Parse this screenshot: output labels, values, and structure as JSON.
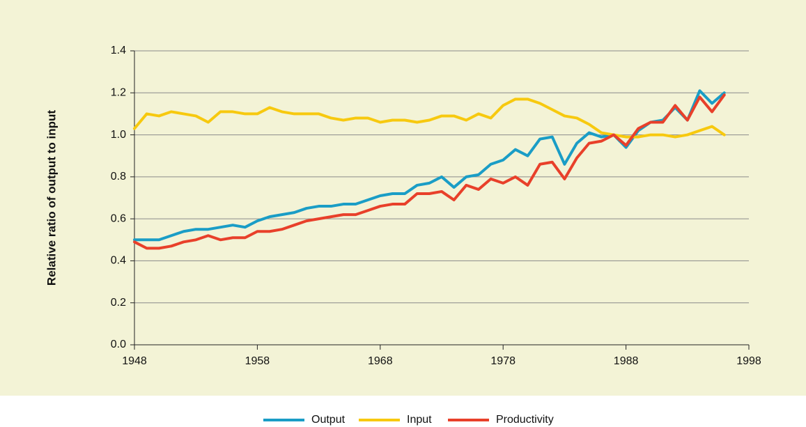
{
  "chart_data": {
    "type": "line",
    "y_label": "Relative ratio of output to input",
    "x": [
      1948,
      1949,
      1950,
      1951,
      1952,
      1953,
      1954,
      1955,
      1956,
      1957,
      1958,
      1959,
      1960,
      1961,
      1962,
      1963,
      1964,
      1965,
      1966,
      1967,
      1968,
      1969,
      1970,
      1971,
      1972,
      1973,
      1974,
      1975,
      1976,
      1977,
      1978,
      1979,
      1980,
      1981,
      1982,
      1983,
      1984,
      1985,
      1986,
      1987,
      1988,
      1989,
      1990,
      1991,
      1992,
      1993,
      1994,
      1995,
      1996
    ],
    "series": [
      {
        "name": "Output",
        "color": "#1a9dc6",
        "values": [
          0.5,
          0.5,
          0.5,
          0.52,
          0.54,
          0.55,
          0.55,
          0.56,
          0.57,
          0.56,
          0.59,
          0.61,
          0.62,
          0.63,
          0.65,
          0.66,
          0.66,
          0.67,
          0.67,
          0.69,
          0.71,
          0.72,
          0.72,
          0.76,
          0.77,
          0.8,
          0.75,
          0.8,
          0.81,
          0.86,
          0.88,
          0.93,
          0.9,
          0.98,
          0.99,
          0.86,
          0.96,
          1.01,
          0.99,
          1.0,
          0.94,
          1.02,
          1.06,
          1.07,
          1.13,
          1.07,
          1.21,
          1.15,
          1.2
        ]
      },
      {
        "name": "Input",
        "color": "#f7c90f",
        "values": [
          1.03,
          1.1,
          1.09,
          1.11,
          1.1,
          1.09,
          1.06,
          1.11,
          1.11,
          1.1,
          1.1,
          1.13,
          1.11,
          1.1,
          1.1,
          1.1,
          1.08,
          1.07,
          1.08,
          1.08,
          1.06,
          1.07,
          1.07,
          1.06,
          1.07,
          1.09,
          1.09,
          1.07,
          1.1,
          1.08,
          1.14,
          1.17,
          1.17,
          1.15,
          1.12,
          1.09,
          1.08,
          1.05,
          1.01,
          1.0,
          0.99,
          0.99,
          1.0,
          1.0,
          0.99,
          1.0,
          1.02,
          1.04,
          1.0
        ]
      },
      {
        "name": "Productivity",
        "color": "#e8402a",
        "values": [
          0.49,
          0.46,
          0.46,
          0.47,
          0.49,
          0.5,
          0.52,
          0.5,
          0.51,
          0.51,
          0.54,
          0.54,
          0.55,
          0.57,
          0.59,
          0.6,
          0.61,
          0.62,
          0.62,
          0.64,
          0.66,
          0.67,
          0.67,
          0.72,
          0.72,
          0.73,
          0.69,
          0.76,
          0.74,
          0.79,
          0.77,
          0.8,
          0.76,
          0.86,
          0.87,
          0.79,
          0.89,
          0.96,
          0.97,
          1.0,
          0.95,
          1.03,
          1.06,
          1.06,
          1.14,
          1.07,
          1.18,
          1.11,
          1.19
        ]
      }
    ],
    "xlim": [
      1948,
      1998
    ],
    "xticks": [
      1948,
      1958,
      1968,
      1978,
      1988,
      1998
    ],
    "ylim": [
      0,
      1.4
    ],
    "yticks": [
      {
        "value": 0,
        "label": "0.0"
      },
      0.2,
      0.4,
      0.6,
      0.8,
      {
        "value": 1,
        "label": "1.0"
      },
      1.2,
      1.4
    ],
    "grid": true
  }
}
